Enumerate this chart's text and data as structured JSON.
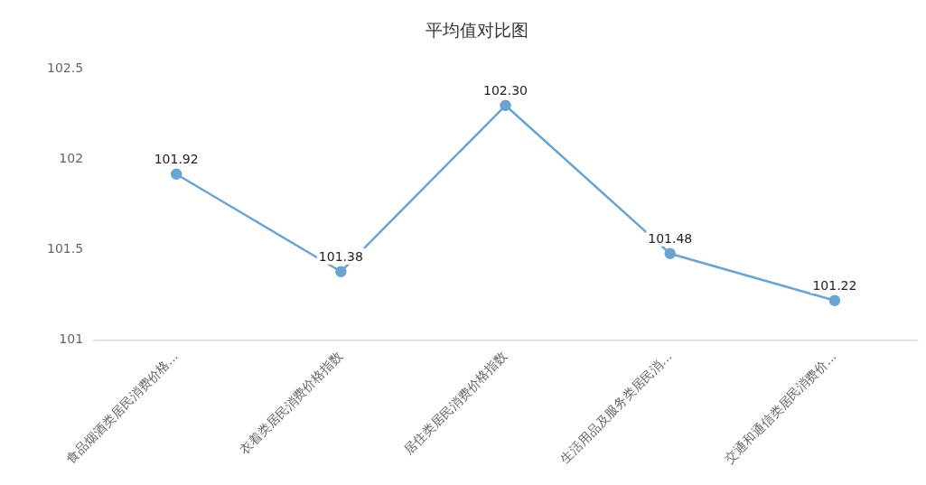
{
  "chart_data": {
    "type": "line",
    "title": "平均值对比图",
    "categories": [
      "食品烟酒类居民消费价格...",
      "衣着类居民消费价格指数",
      "居住类居民消费价格指数",
      "生活用品及服务类居民消...",
      "交通和通信类居民消费价..."
    ],
    "series": [
      {
        "color": "#6aa4d0",
        "values": [
          101.92,
          101.38,
          102.3,
          101.48,
          101.22
        ],
        "value_labels": [
          "101.92",
          "101.38",
          "102.30",
          "101.48",
          "101.22"
        ]
      }
    ],
    "ylim": [
      101,
      102.5
    ],
    "yticks": [
      101,
      101.5,
      102,
      102.5
    ],
    "grid": false,
    "legend": false,
    "marker": "circle",
    "line_style": "solid"
  }
}
